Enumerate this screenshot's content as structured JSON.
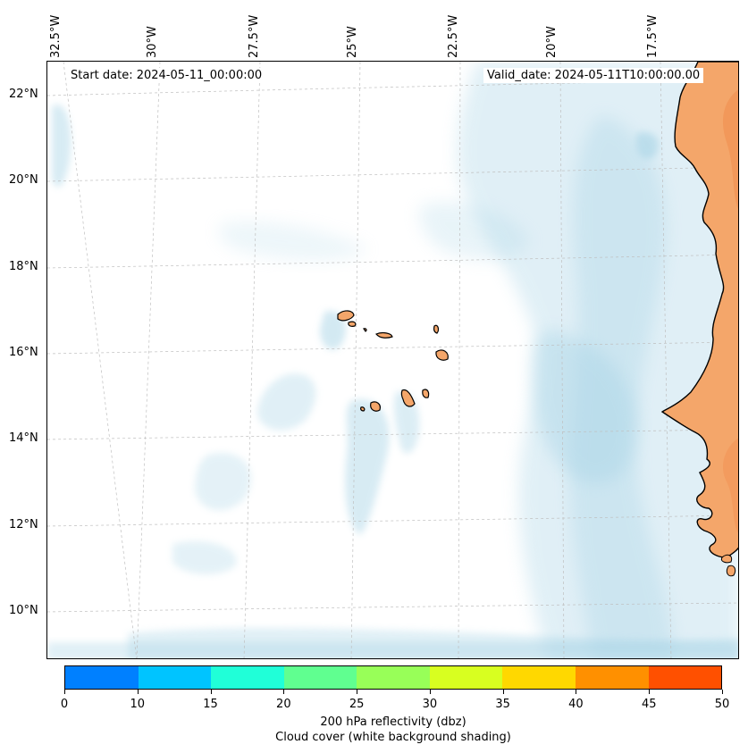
{
  "map": {
    "start_date": "Start date: 2024-05-11_00:00:00",
    "valid_date": "Valid_date: 2024-05-11T10:00:00.00",
    "lon_labels": [
      "32.5°W",
      "30°W",
      "27.5°W",
      "25°W",
      "22.5°W",
      "20°W",
      "17.5°W"
    ],
    "lat_labels": [
      "22°N",
      "20°N",
      "18°N",
      "16°N",
      "14°N",
      "12°N",
      "10°N"
    ],
    "land_color": "#f4a66a",
    "cloud_color": "#a8d4e6",
    "coast_color": "#000000"
  },
  "colorbar": {
    "ticks": [
      "0",
      "10",
      "15",
      "20",
      "25",
      "30",
      "35",
      "40",
      "45",
      "50"
    ],
    "colors": [
      "#0080ff",
      "#00c4ff",
      "#20ffd8",
      "#60ff90",
      "#98ff58",
      "#d8ff20",
      "#ffd800",
      "#ff9000",
      "#ff5000"
    ],
    "label": "200 hPa reflectivity (dbz)",
    "sublabel": "Cloud cover (white background shading)"
  }
}
